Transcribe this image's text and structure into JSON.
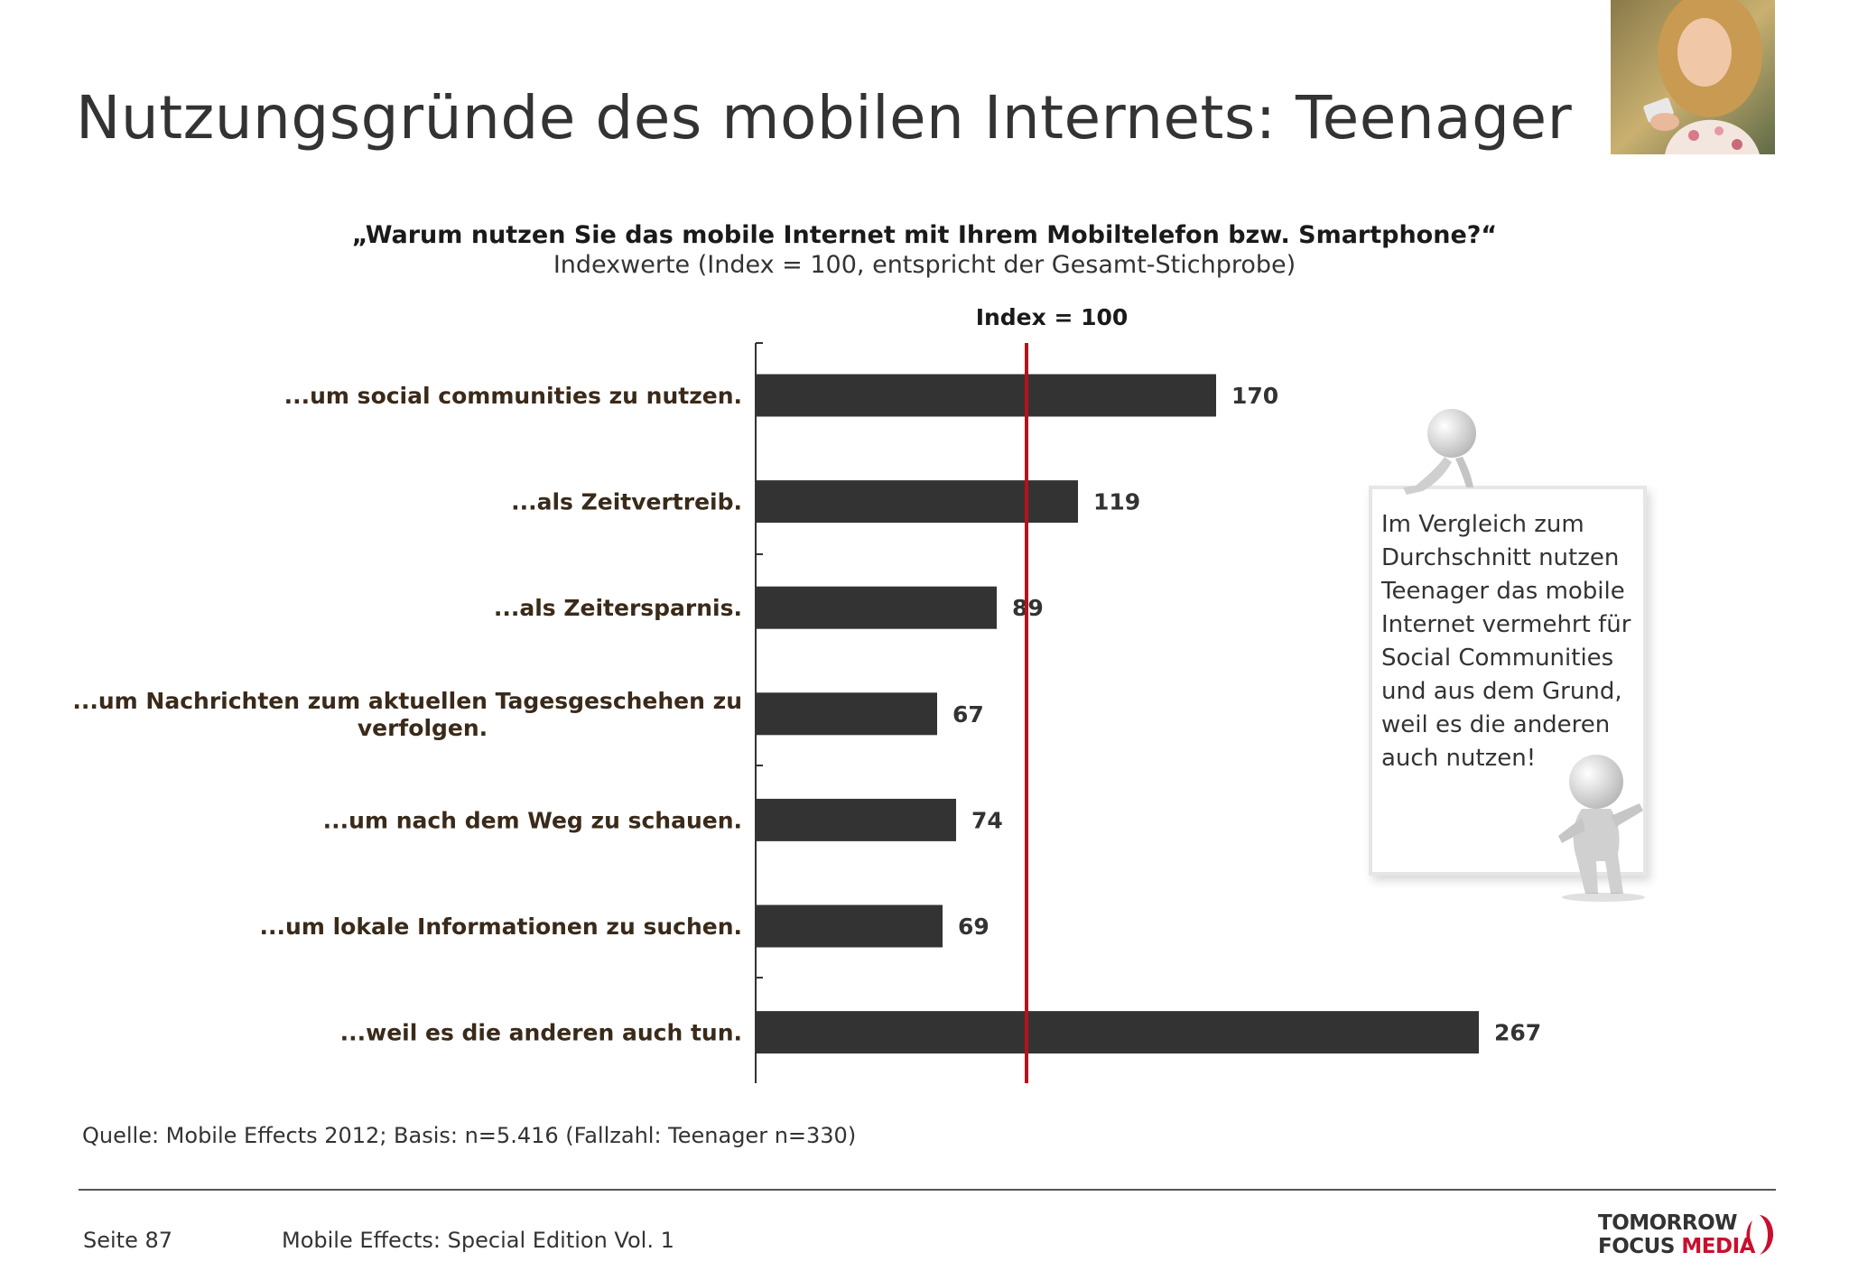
{
  "slide": {
    "title": "Nutzungsgründe des mobilen Internets: Teenager",
    "question": "„Warum nutzen Sie das mobile Internet mit Ihrem Mobiltelefon bzw. Smartphone?“",
    "subtitle": "Indexwerte (Index = 100, entspricht der Gesamt-Stichprobe)"
  },
  "chart_data": {
    "type": "bar",
    "orientation": "horizontal",
    "categories": [
      "...um social communities zu nutzen.",
      "...als Zeitvertreib.",
      "...als Zeitersparnis.",
      "...um Nachrichten zum aktuellen Tagesgeschehen zu verfolgen.",
      "...um nach dem Weg zu schauen.",
      "...um lokale Informationen zu suchen.",
      "...weil es die anderen auch tun."
    ],
    "values": [
      170,
      119,
      89,
      67,
      74,
      69,
      267
    ],
    "data_labels": [
      "170",
      "119",
      "89",
      "67",
      "74",
      "69",
      "267"
    ],
    "reference_line": {
      "value": 100,
      "label": "Index = 100",
      "color": "#b5121b"
    },
    "xlim": [
      0,
      280
    ],
    "bar_color": "#333333",
    "grid": false
  },
  "callout": {
    "text": "Im Vergleich zum Durchschnitt nutzen Teenager das mobile Internet vermehrt für Social Communities und aus dem Grund, weil es die anderen auch nutzen!"
  },
  "footer": {
    "source": "Quelle: Mobile Effects 2012; Basis: n=5.416 (Fallzahl: Teenager n=330)",
    "page": "Seite 87",
    "report": "Mobile Effects: Special Edition Vol. 1",
    "logo_line1": "TOMORROW",
    "logo_line2a": "FOCUS ",
    "logo_line2b": "MEDIA"
  },
  "colors": {
    "accent": "#b5121b",
    "bar": "#333333",
    "label_text": "#3a2a1a"
  }
}
